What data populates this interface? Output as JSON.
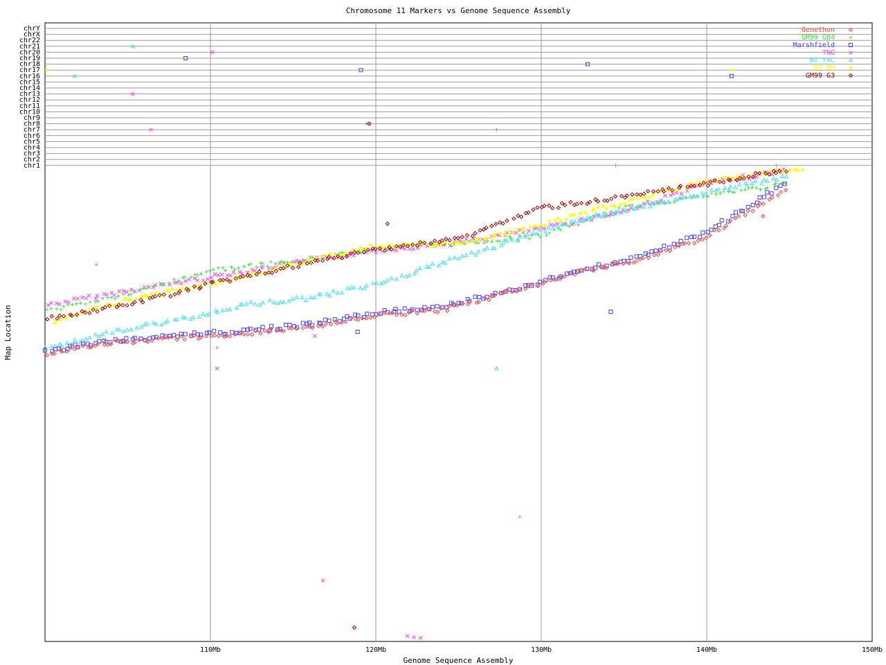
{
  "chart_data": {
    "type": "scatter",
    "title": "Chromosome 11 Markers vs Genome Sequence Assembly",
    "xlabel": "Genome Sequence Assembly",
    "ylabel": "Map Location",
    "xlim": [
      100,
      150
    ],
    "x_ticks": [
      {
        "value": 110,
        "label": "110Mb"
      },
      {
        "value": 120,
        "label": "120Mb"
      },
      {
        "value": 130,
        "label": "130Mb"
      },
      {
        "value": 140,
        "label": "140Mb"
      },
      {
        "value": 150,
        "label": "150Mb"
      }
    ],
    "chromosome_rows": [
      "chrY",
      "chrX",
      "chr22",
      "chr21",
      "chr20",
      "chr19",
      "chr18",
      "chr17",
      "chr16",
      "chr15",
      "chr14",
      "chr13",
      "chr12",
      "chr11",
      "chr10",
      "chr9",
      "chr8",
      "chr7",
      "chr6",
      "chr5",
      "chr4",
      "chr3",
      "chr2",
      "chr1"
    ],
    "grid": true,
    "legend_position": "top-right",
    "series": [
      {
        "name": "Genethon",
        "color": "#ff4040",
        "marker": "diamond"
      },
      {
        "name": "GM99 GB4",
        "color": "#40e040",
        "marker": "plus"
      },
      {
        "name": "Marshfield",
        "color": "#4040ff",
        "marker": "square"
      },
      {
        "name": "TNG",
        "color": "#ff40ff",
        "marker": "x"
      },
      {
        "name": "WI YAC",
        "color": "#40e0ff",
        "marker": "triangle"
      },
      {
        "name": "WI RH",
        "color": "#ffff00",
        "marker": "star"
      },
      {
        "name": "GM99 G3",
        "color": "#a00000",
        "marker": "diamond"
      }
    ],
    "other_chromosome_points": [
      {
        "series": "TNG",
        "x": 110.1,
        "chr": "chr20"
      },
      {
        "series": "TNG",
        "x": 105.3,
        "chr": "chr13"
      },
      {
        "series": "TNG",
        "x": 106.4,
        "chr": "chr7"
      },
      {
        "series": "TNG",
        "x": 119.5,
        "chr": "chr8"
      },
      {
        "series": "WI YAC",
        "x": 105.3,
        "chr": "chr21"
      },
      {
        "series": "WI YAC",
        "x": 101.8,
        "chr": "chr16"
      },
      {
        "series": "Marshfield",
        "x": 108.5,
        "chr": "chr19"
      },
      {
        "series": "Marshfield",
        "x": 119.1,
        "chr": "chr17"
      },
      {
        "series": "Marshfield",
        "x": 141.5,
        "chr": "chr16"
      },
      {
        "series": "WI RH",
        "x": 100.1,
        "chr": "chr17"
      },
      {
        "series": "WI RH",
        "x": 141.5,
        "chr": "chr17"
      },
      {
        "series": "GM99 GB4",
        "x": 127.3,
        "chr": "chr7"
      },
      {
        "series": "GM99 GB4",
        "x": 134.5,
        "chr": "chr1"
      },
      {
        "series": "GM99 GB4",
        "x": 144.2,
        "chr": "chr1"
      },
      {
        "series": "GM99 G3",
        "x": 119.6,
        "chr": "chr8"
      },
      {
        "series": "Marshfield",
        "x": 132.8,
        "chr": "chr18"
      }
    ],
    "chr11_trends": [
      {
        "series": "TNG",
        "points": [
          [
            100.2,
            440
          ],
          [
            105,
            420
          ],
          [
            110,
            400
          ],
          [
            115,
            380
          ],
          [
            120,
            362
          ],
          [
            125,
            350
          ],
          [
            130,
            330
          ],
          [
            135,
            305
          ],
          [
            140,
            265
          ],
          [
            145,
            245
          ]
        ]
      },
      {
        "series": "GM99 GB4",
        "points": [
          [
            100.2,
            448
          ],
          [
            105,
            425
          ],
          [
            110,
            390
          ],
          [
            115,
            378
          ],
          [
            120,
            358
          ],
          [
            125,
            352
          ],
          [
            130,
            340
          ],
          [
            135,
            300
          ],
          [
            140,
            282
          ],
          [
            145,
            265
          ]
        ]
      },
      {
        "series": "WI RH",
        "points": [
          [
            100.5,
            465
          ],
          [
            105,
            432
          ],
          [
            110,
            410
          ],
          [
            115,
            382
          ],
          [
            120,
            355
          ],
          [
            125,
            352
          ],
          [
            130,
            325
          ],
          [
            135,
            292
          ],
          [
            140,
            262
          ],
          [
            146,
            242
          ]
        ]
      },
      {
        "series": "GM99 G3",
        "points": [
          [
            100.2,
            460
          ],
          [
            105,
            440
          ],
          [
            110,
            410
          ],
          [
            115,
            385
          ],
          [
            120,
            360
          ],
          [
            125,
            345
          ],
          [
            130,
            300
          ],
          [
            135,
            285
          ],
          [
            140,
            265
          ],
          [
            145,
            245
          ]
        ]
      },
      {
        "series": "WI YAC",
        "points": [
          [
            100.1,
            503
          ],
          [
            104,
            480
          ],
          [
            108,
            462
          ],
          [
            112,
            440
          ],
          [
            116,
            430
          ],
          [
            120,
            410
          ],
          [
            124,
            380
          ],
          [
            128,
            350
          ],
          [
            132,
            318
          ],
          [
            136,
            300
          ],
          [
            140,
            278
          ],
          [
            145,
            255
          ]
        ]
      },
      {
        "series": "Marshfield",
        "points": [
          [
            100.1,
            507
          ],
          [
            104,
            492
          ],
          [
            108,
            484
          ],
          [
            112,
            478
          ],
          [
            116,
            468
          ],
          [
            120,
            452
          ],
          [
            124,
            442
          ],
          [
            128,
            420
          ],
          [
            132,
            393
          ],
          [
            136,
            370
          ],
          [
            140,
            335
          ],
          [
            145,
            262
          ]
        ]
      },
      {
        "series": "Genethon",
        "points": [
          [
            100.1,
            510
          ],
          [
            104,
            495
          ],
          [
            108,
            488
          ],
          [
            112,
            482
          ],
          [
            116,
            472
          ],
          [
            120,
            455
          ],
          [
            124,
            448
          ],
          [
            128,
            422
          ],
          [
            132,
            395
          ],
          [
            136,
            374
          ],
          [
            140,
            342
          ],
          [
            145,
            272
          ]
        ]
      }
    ],
    "chr11_outliers": [
      {
        "series": "GM99 GB4",
        "x": 103.1,
        "y": 382
      },
      {
        "series": "GM99 GB4",
        "x": 110.4,
        "y": 502
      },
      {
        "series": "GM99 GB4",
        "x": 128.7,
        "y": 746
      },
      {
        "series": "TNG",
        "x": 110.4,
        "y": 532
      },
      {
        "series": "TNG",
        "x": 116.3,
        "y": 485
      },
      {
        "series": "TNG",
        "x": 116.8,
        "y": 838
      },
      {
        "series": "TNG",
        "x": 121.9,
        "y": 918
      },
      {
        "series": "TNG",
        "x": 122.3,
        "y": 920
      },
      {
        "series": "TNG",
        "x": 122.7,
        "y": 921
      },
      {
        "series": "GM99 G3",
        "x": 118.7,
        "y": 906
      },
      {
        "series": "GM99 G3",
        "x": 120.7,
        "y": 323
      },
      {
        "series": "WI YAC",
        "x": 127.3,
        "y": 532
      },
      {
        "series": "Marshfield",
        "x": 134.2,
        "y": 450
      },
      {
        "series": "Marshfield",
        "x": 118.9,
        "y": 479
      },
      {
        "series": "Genethon",
        "x": 143.4,
        "y": 312
      }
    ]
  }
}
